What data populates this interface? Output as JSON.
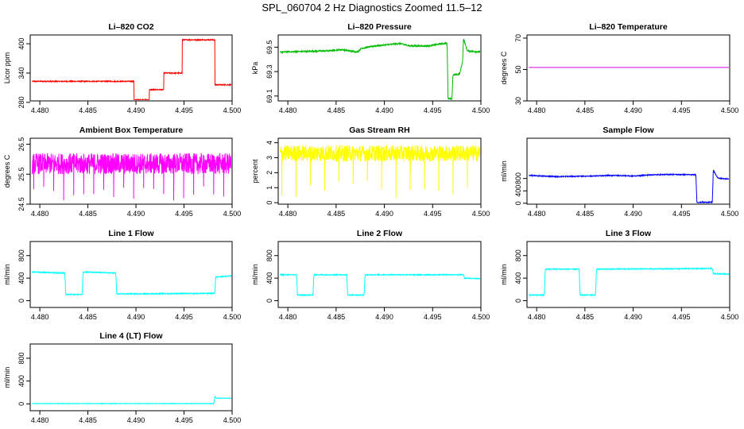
{
  "figure_title": "SPL_060704  2 Hz Diagnostics Zoomed 11.5–12",
  "chart_data": [
    {
      "type": "line",
      "title": "Li–820 CO2",
      "ylabel": "Licor ppm",
      "xlabel": "",
      "xlim": [
        4.479,
        4.5
      ],
      "ylim": [
        283,
        418
      ],
      "xticks": [
        "4.480",
        "4.485",
        "4.490",
        "4.495",
        "4.500"
      ],
      "yticks": [
        "280",
        "340",
        "400"
      ],
      "color": "#ff0000",
      "noise": 1,
      "series": [
        {
          "x": [
            4.4792,
            4.4898,
            4.4898,
            4.4914,
            4.4914,
            4.4929,
            4.4929,
            4.4948,
            4.4948,
            4.4982,
            4.4982,
            4.5
          ],
          "y": [
            323,
            323,
            285,
            285,
            306,
            306,
            340,
            340,
            408,
            408,
            316,
            316
          ]
        }
      ]
    },
    {
      "type": "line",
      "title": "Li–820 Pressure",
      "ylabel": "kPa",
      "xlabel": "",
      "xlim": [
        4.479,
        4.5
      ],
      "ylim": [
        69.06,
        69.6
      ],
      "xticks": [
        "4.480",
        "4.485",
        "4.490",
        "4.495",
        "4.500"
      ],
      "yticks": [
        "69.1",
        "69.3",
        "69.5"
      ],
      "color": "#00bb00",
      "noise": 0.006,
      "series": [
        {
          "x": [
            4.4792,
            4.4842,
            4.4856,
            4.4872,
            4.4876,
            4.489,
            4.4903,
            4.4916,
            4.4927,
            4.4946,
            4.496,
            4.4965,
            4.4966,
            4.4966,
            4.497,
            4.4971,
            4.4978,
            4.4981,
            4.4982,
            4.4986,
            4.5
          ],
          "y": [
            69.46,
            69.47,
            69.48,
            69.46,
            69.49,
            69.51,
            69.52,
            69.53,
            69.51,
            69.51,
            69.53,
            69.53,
            69.08,
            69.08,
            69.08,
            69.27,
            69.28,
            69.38,
            69.57,
            69.47,
            69.46
          ]
        }
      ]
    },
    {
      "type": "line",
      "title": "Li–820 Temperature",
      "ylabel": "degrees C",
      "xlabel": "",
      "xlim": [
        4.479,
        4.5
      ],
      "ylim": [
        30,
        72
      ],
      "xticks": [
        "4.480",
        "4.485",
        "4.490",
        "4.495",
        "4.500"
      ],
      "yticks": [
        "30",
        "50",
        "70"
      ],
      "color": "#dd00dd",
      "noise": 0,
      "series": [
        {
          "x": [
            4.4792,
            4.5
          ],
          "y": [
            51.3,
            51.3
          ]
        }
      ]
    },
    {
      "type": "line",
      "title": "Ambient Box Temperature",
      "ylabel": "degrees C",
      "xlabel": "",
      "xlim": [
        4.479,
        4.5
      ],
      "ylim": [
        24.5,
        26.7
      ],
      "xticks": [
        "4.480",
        "4.485",
        "4.490",
        "4.495",
        "4.500"
      ],
      "yticks": [
        "24.5",
        "25.5",
        "26.5"
      ],
      "color": "#ff00ff",
      "noise": 0.35,
      "spikes": {
        "count": 20,
        "value": 24.6
      },
      "series": [
        {
          "x": [
            4.4792,
            4.5
          ],
          "y": [
            25.85,
            25.85
          ]
        }
      ]
    },
    {
      "type": "line",
      "title": "Gas Stream RH",
      "ylabel": "percent",
      "xlabel": "",
      "xlim": [
        4.479,
        4.5
      ],
      "ylim": [
        -0.1,
        4.3
      ],
      "xticks": [
        "4.480",
        "4.485",
        "4.490",
        "4.495",
        "4.500"
      ],
      "yticks": [
        "0",
        "1",
        "2",
        "3",
        "4"
      ],
      "color": "#ffff00",
      "noise": 0.55,
      "spikes": {
        "count": 14,
        "value": 0.3
      },
      "series": [
        {
          "x": [
            4.4792,
            4.5
          ],
          "y": [
            3.3,
            3.3
          ]
        }
      ]
    },
    {
      "type": "line",
      "title": "Sample Flow",
      "ylabel": "ml/min",
      "xlabel": "",
      "xlim": [
        4.479,
        4.5
      ],
      "ylim": [
        -30,
        2100
      ],
      "xticks": [
        "4.480",
        "4.485",
        "4.490",
        "4.495",
        "4.500"
      ],
      "yticks": [
        "0",
        "400",
        "800"
      ],
      "color": "#0000ff",
      "noise": 15,
      "series": [
        {
          "x": [
            4.4792,
            4.4805,
            4.482,
            4.484,
            4.486,
            4.488,
            4.49,
            4.492,
            4.494,
            4.4965,
            4.4966,
            4.4982,
            4.4983,
            4.4986,
            4.4988,
            4.5
          ],
          "y": [
            900,
            880,
            860,
            870,
            880,
            900,
            880,
            920,
            930,
            920,
            30,
            30,
            1070,
            900,
            810,
            780
          ]
        }
      ]
    },
    {
      "type": "line",
      "title": "Line 1 Flow",
      "ylabel": "ml/min",
      "xlabel": "",
      "xlim": [
        4.479,
        4.5
      ],
      "ylim": [
        -120,
        1050
      ],
      "xticks": [
        "4.480",
        "4.485",
        "4.490",
        "4.495",
        "4.500"
      ],
      "yticks": [
        "0",
        "400",
        "800"
      ],
      "color": "#00ffff",
      "noise": 8,
      "series": [
        {
          "x": [
            4.4792,
            4.4826,
            4.4827,
            4.4844,
            4.4845,
            4.4879,
            4.488,
            4.4982,
            4.4983,
            4.5
          ],
          "y": [
            510,
            490,
            110,
            110,
            510,
            490,
            120,
            130,
            420,
            440
          ]
        }
      ]
    },
    {
      "type": "line",
      "title": "Line 2 Flow",
      "ylabel": "ml/min",
      "xlabel": "",
      "xlim": [
        4.479,
        4.5
      ],
      "ylim": [
        -120,
        1050
      ],
      "xticks": [
        "4.480",
        "4.485",
        "4.490",
        "4.495",
        "4.500"
      ],
      "yticks": [
        "0",
        "400",
        "800"
      ],
      "color": "#00ffff",
      "noise": 8,
      "series": [
        {
          "x": [
            4.4792,
            4.4809,
            4.481,
            4.4826,
            4.4827,
            4.4861,
            4.4862,
            4.4879,
            4.488,
            4.4982,
            4.4983,
            4.5
          ],
          "y": [
            460,
            460,
            100,
            100,
            460,
            460,
            100,
            100,
            460,
            460,
            400,
            390
          ]
        }
      ]
    },
    {
      "type": "line",
      "title": "Line 3 Flow",
      "ylabel": "ml/min",
      "xlabel": "",
      "xlim": [
        4.479,
        4.5
      ],
      "ylim": [
        -120,
        1050
      ],
      "xticks": [
        "4.480",
        "4.485",
        "4.490",
        "4.495",
        "4.500"
      ],
      "yticks": [
        "0",
        "400",
        "800"
      ],
      "color": "#00ffff",
      "noise": 8,
      "series": [
        {
          "x": [
            4.4792,
            4.4808,
            4.4809,
            4.4844,
            4.4845,
            4.4861,
            4.4862,
            4.4982,
            4.4983,
            4.5
          ],
          "y": [
            100,
            100,
            560,
            560,
            100,
            100,
            560,
            570,
            480,
            470
          ]
        }
      ]
    },
    {
      "type": "line",
      "title": "Line 4 (LT) Flow",
      "ylabel": "ml/min",
      "xlabel": "",
      "xlim": [
        4.479,
        4.5
      ],
      "ylim": [
        -120,
        1050
      ],
      "xticks": [
        "4.480",
        "4.485",
        "4.490",
        "4.495",
        "4.500"
      ],
      "yticks": [
        "0",
        "400",
        "800"
      ],
      "color": "#00ffff",
      "noise": 4,
      "series": [
        {
          "x": [
            4.4792,
            4.4981,
            4.4982,
            4.4984,
            4.5
          ],
          "y": [
            5,
            5,
            130,
            100,
            100
          ]
        }
      ]
    }
  ]
}
